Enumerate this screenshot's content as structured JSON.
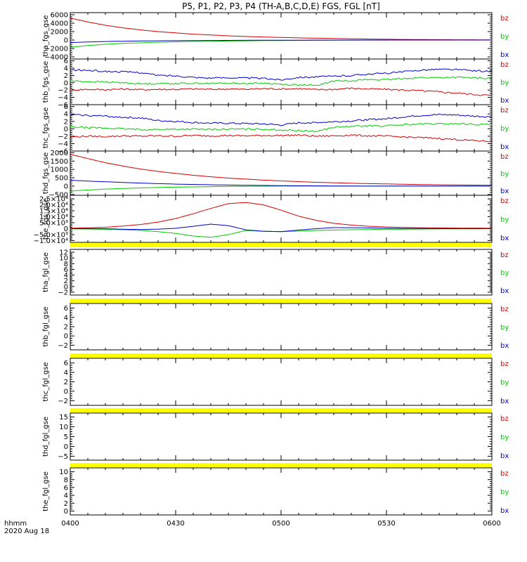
{
  "figure": {
    "title": "P5, P1, P2, P3, P4 (TH-A,B,C,D,E) FGS, FGL [nT]",
    "x_ticks": [
      "0400",
      "0430",
      "0500",
      "0530",
      "0600"
    ],
    "time_label": "hhmm",
    "date_label": "2020 Aug 18",
    "colors": {
      "bz": "#d40000",
      "by": "#00cc00",
      "bx": "#0000cc",
      "gap_bar": "#ffff00"
    }
  },
  "chart_data": [
    {
      "type": "line",
      "ylabel": "tha_fgs_gse",
      "yticks": [
        6000,
        4000,
        2000,
        0,
        -2000,
        -4000
      ],
      "ytick_labels": [
        "6000",
        "4000",
        "2000",
        "0",
        "−2000",
        "−4000"
      ],
      "ylim": [
        -4500,
        6500
      ],
      "x": [
        "0400",
        "0405",
        "0410",
        "0415",
        "0420",
        "0425",
        "0430",
        "0435",
        "0440",
        "0445",
        "0450",
        "0455",
        "0500",
        "0505",
        "0510",
        "0515",
        "0520",
        "0525",
        "0530",
        "0535",
        "0540",
        "0545",
        "0550",
        "0555",
        "0600"
      ],
      "series": [
        {
          "name": "bz",
          "values": [
            5200,
            4300,
            3500,
            2900,
            2400,
            2000,
            1700,
            1400,
            1200,
            1000,
            850,
            720,
            620,
            520,
            440,
            370,
            300,
            240,
            190,
            150,
            120,
            90,
            70,
            60,
            50
          ]
        },
        {
          "name": "by",
          "values": [
            -1700,
            -1300,
            -1000,
            -800,
            -650,
            -520,
            -420,
            -340,
            -280,
            -230,
            -180,
            -140,
            -110,
            -90,
            -70,
            -50,
            -30,
            -20,
            -10,
            0,
            0,
            0,
            0,
            0,
            0
          ]
        },
        {
          "name": "bx",
          "values": [
            -600,
            -450,
            -350,
            -280,
            -220,
            -180,
            -150,
            -120,
            -100,
            -80,
            -60,
            -50,
            -40,
            -30,
            -20,
            -10,
            0,
            0,
            0,
            0,
            0,
            0,
            0,
            0,
            0
          ]
        }
      ],
      "legend": [
        "bz",
        "by",
        "bx"
      ]
    },
    {
      "type": "line",
      "ylabel": "thb_fgs_gse",
      "yticks": [
        6,
        4,
        2,
        0,
        -2,
        -4,
        -6
      ],
      "ytick_labels": [
        "6",
        "4",
        "2",
        "0",
        "−2",
        "−4",
        "−6"
      ],
      "ylim": [
        -6,
        6.5
      ],
      "x": [
        "0400",
        "0405",
        "0410",
        "0415",
        "0420",
        "0425",
        "0430",
        "0435",
        "0440",
        "0445",
        "0450",
        "0455",
        "0500",
        "0505",
        "0510",
        "0515",
        "0520",
        "0525",
        "0530",
        "0535",
        "0540",
        "0545",
        "0550",
        "0555",
        "0600"
      ],
      "series": [
        {
          "name": "bz",
          "values": [
            -2,
            -1.8,
            -1.9,
            -1.7,
            -1.9,
            -1.8,
            -1.8,
            -1.7,
            -1.8,
            -1.7,
            -1.8,
            -1.6,
            -1.7,
            -1.6,
            -1.9,
            -1.8,
            -1.5,
            -1.7,
            -1.8,
            -2,
            -2.2,
            -2.5,
            -2.8,
            -3.2,
            -3.5
          ]
        },
        {
          "name": "by",
          "values": [
            0.5,
            0.3,
            0.2,
            0,
            -0.3,
            -0.2,
            -0.2,
            -0.1,
            -0.2,
            -0.1,
            -0.2,
            -0.1,
            -0.4,
            -0.6,
            -0.8,
            0.5,
            0.6,
            0.9,
            0.8,
            1.2,
            1.4,
            1.4,
            1.5,
            1.3,
            1.2
          ]
        },
        {
          "name": "bx",
          "values": [
            3.5,
            3.4,
            3.1,
            3.0,
            2.8,
            2.0,
            1.9,
            1.5,
            1.3,
            1.4,
            1.3,
            1.2,
            0.8,
            1.5,
            1.6,
            1.8,
            2.0,
            2.4,
            2.6,
            3.0,
            3.5,
            3.7,
            3.6,
            3.3,
            3.1
          ]
        }
      ],
      "legend": [
        "bz",
        "by",
        "bx"
      ]
    },
    {
      "type": "line",
      "ylabel": "thc_fgs_gse",
      "yticks": [
        6,
        4,
        2,
        0,
        -2,
        -4,
        -6
      ],
      "ytick_labels": [
        "6",
        "4",
        "2",
        "0",
        "−2",
        "−4",
        "−6"
      ],
      "ylim": [
        -6,
        6.5
      ],
      "x": [
        "0400",
        "0405",
        "0410",
        "0415",
        "0420",
        "0425",
        "0430",
        "0435",
        "0440",
        "0445",
        "0450",
        "0455",
        "0500",
        "0505",
        "0510",
        "0515",
        "0520",
        "0525",
        "0530",
        "0535",
        "0540",
        "0545",
        "0550",
        "0555",
        "0600"
      ],
      "series": [
        {
          "name": "bz",
          "values": [
            -2.2,
            -2,
            -2.1,
            -1.9,
            -2,
            -1.9,
            -2,
            -1.8,
            -1.9,
            -1.8,
            -1.9,
            -1.8,
            -1.8,
            -1.7,
            -2,
            -1.9,
            -1.7,
            -1.9,
            -2,
            -2.2,
            -2.4,
            -2.6,
            -2.9,
            -3.2,
            -3.4
          ]
        },
        {
          "name": "by",
          "values": [
            0.5,
            0.3,
            0.2,
            0,
            -0.2,
            -0.2,
            -0.1,
            -0.1,
            -0.2,
            -0.1,
            -0.1,
            -0.1,
            -0.3,
            -0.5,
            -0.7,
            0.4,
            0.6,
            0.8,
            0.8,
            1.1,
            1.3,
            1.3,
            1.4,
            1.2,
            1.1
          ]
        },
        {
          "name": "bx",
          "values": [
            3.8,
            3.6,
            3.4,
            3.1,
            2.9,
            2.2,
            2.0,
            1.7,
            1.5,
            1.5,
            1.4,
            1.3,
            1.0,
            1.6,
            1.7,
            1.9,
            2.1,
            2.5,
            2.7,
            3.2,
            3.6,
            3.8,
            3.7,
            3.4,
            3.2
          ]
        }
      ],
      "legend": [
        "bz",
        "by",
        "bx"
      ]
    },
    {
      "type": "line",
      "ylabel": "thd_fgs_gse",
      "yticks": [
        2000,
        1500,
        1000,
        500,
        0,
        -500
      ],
      "ytick_labels": [
        "2000",
        "1500",
        "1000",
        "500",
        "0",
        "−500"
      ],
      "ylim": [
        -550,
        2100
      ],
      "x": [
        "0400",
        "0405",
        "0410",
        "0415",
        "0420",
        "0425",
        "0430",
        "0435",
        "0440",
        "0445",
        "0450",
        "0455",
        "0500",
        "0505",
        "0510",
        "0515",
        "0520",
        "0525",
        "0530",
        "0535",
        "0540",
        "0545",
        "0550",
        "0555",
        "0600"
      ],
      "series": [
        {
          "name": "bz",
          "values": [
            1900,
            1650,
            1400,
            1200,
            1020,
            880,
            760,
            650,
            560,
            480,
            420,
            360,
            310,
            270,
            230,
            200,
            170,
            150,
            130,
            110,
            95,
            80,
            70,
            60,
            50
          ]
        },
        {
          "name": "by",
          "values": [
            -300,
            -230,
            -180,
            -140,
            -110,
            -80,
            -60,
            -45,
            -30,
            -20,
            -10,
            -5,
            0,
            0,
            0,
            0,
            0,
            0,
            0,
            0,
            0,
            0,
            0,
            0,
            0
          ]
        },
        {
          "name": "bx",
          "values": [
            350,
            300,
            260,
            220,
            180,
            150,
            120,
            100,
            80,
            65,
            50,
            40,
            30,
            20,
            15,
            10,
            5,
            0,
            0,
            0,
            0,
            0,
            0,
            0,
            0
          ]
        }
      ],
      "legend": [
        "bz",
        "by",
        "bx"
      ]
    },
    {
      "type": "line",
      "ylabel": "the_fgs_gse",
      "yticks": [
        25000,
        20000,
        15000,
        10000,
        5000,
        0,
        -5000,
        -10000
      ],
      "ytick_labels": [
        "2.5×10⁴",
        "2.0×10⁴",
        "1.5×10⁴",
        "1.0×10⁴",
        "5.0×10³",
        "0",
        "−5.0×10³",
        "−1.0×10⁴"
      ],
      "ylim": [
        -11500,
        28000
      ],
      "x": [
        "0400",
        "0405",
        "0410",
        "0415",
        "0420",
        "0425",
        "0430",
        "0435",
        "0440",
        "0445",
        "0450",
        "0455",
        "0500",
        "0505",
        "0510",
        "0515",
        "0520",
        "0525",
        "0530",
        "0535",
        "0540",
        "0545",
        "0550",
        "0555",
        "0600"
      ],
      "series": [
        {
          "name": "bz",
          "values": [
            400,
            700,
            1200,
            2200,
            3500,
            5500,
            8500,
            12500,
            17000,
            21000,
            22000,
            20000,
            15500,
            10500,
            7000,
            4500,
            3000,
            2000,
            1400,
            1000,
            800,
            600,
            500,
            400,
            350
          ]
        },
        {
          "name": "by",
          "values": [
            -200,
            -300,
            -500,
            -900,
            -1400,
            -2500,
            -4000,
            -6200,
            -7200,
            -5000,
            -1500,
            -2200,
            -2500,
            -2000,
            -1500,
            -1200,
            -900,
            -700,
            -500,
            -400,
            -300,
            -200,
            -150,
            -100,
            -80
          ]
        },
        {
          "name": "bx",
          "values": [
            0,
            100,
            0,
            -500,
            -700,
            -400,
            300,
            2000,
            3800,
            2500,
            -1000,
            -2200,
            -2500,
            -1200,
            0,
            900,
            800,
            600,
            300,
            150,
            100,
            50,
            0,
            0,
            0
          ]
        }
      ],
      "legend": [
        "bz",
        "by",
        "bx"
      ]
    },
    {
      "type": "line",
      "ylabel": "tha_fgl_gse",
      "yticks": [
        12,
        10,
        8,
        6,
        4,
        2,
        0,
        -2
      ],
      "ytick_labels": [
        "12",
        "10",
        "8",
        "6",
        "4",
        "2",
        "0",
        "−2"
      ],
      "ylim": [
        -3,
        13
      ],
      "x": [],
      "series": [],
      "legend": [
        "bz",
        "by",
        "bx"
      ]
    },
    {
      "type": "line",
      "ylabel": "thb_fgl_gse",
      "yticks": [
        6,
        4,
        2,
        0,
        -2
      ],
      "ytick_labels": [
        "6",
        "4",
        "2",
        "0",
        "−2"
      ],
      "ylim": [
        -3,
        7
      ],
      "x": [],
      "series": [],
      "legend": [
        "bz",
        "by",
        "bx"
      ]
    },
    {
      "type": "line",
      "ylabel": "thc_fgl_gse",
      "yticks": [
        6,
        4,
        2,
        0,
        -2
      ],
      "ytick_labels": [
        "6",
        "4",
        "2",
        "0",
        "−2"
      ],
      "ylim": [
        -3,
        7
      ],
      "x": [],
      "series": [],
      "legend": [
        "bz",
        "by",
        "bx"
      ]
    },
    {
      "type": "line",
      "ylabel": "thd_fgl_gse",
      "yticks": [
        15,
        10,
        5,
        0,
        -5
      ],
      "ytick_labels": [
        "15",
        "10",
        "5",
        "0",
        "−5"
      ],
      "ylim": [
        -7,
        17
      ],
      "x": [],
      "series": [],
      "legend": [
        "bz",
        "by",
        "bx"
      ]
    },
    {
      "type": "line",
      "ylabel": "the_fgl_gse",
      "yticks": [
        10,
        8,
        6,
        4,
        2,
        0
      ],
      "ytick_labels": [
        "10",
        "8",
        "6",
        "4",
        "2",
        "0"
      ],
      "ylim": [
        -1,
        11
      ],
      "x": [],
      "series": [],
      "legend": [
        "bz",
        "by",
        "bx"
      ]
    }
  ]
}
